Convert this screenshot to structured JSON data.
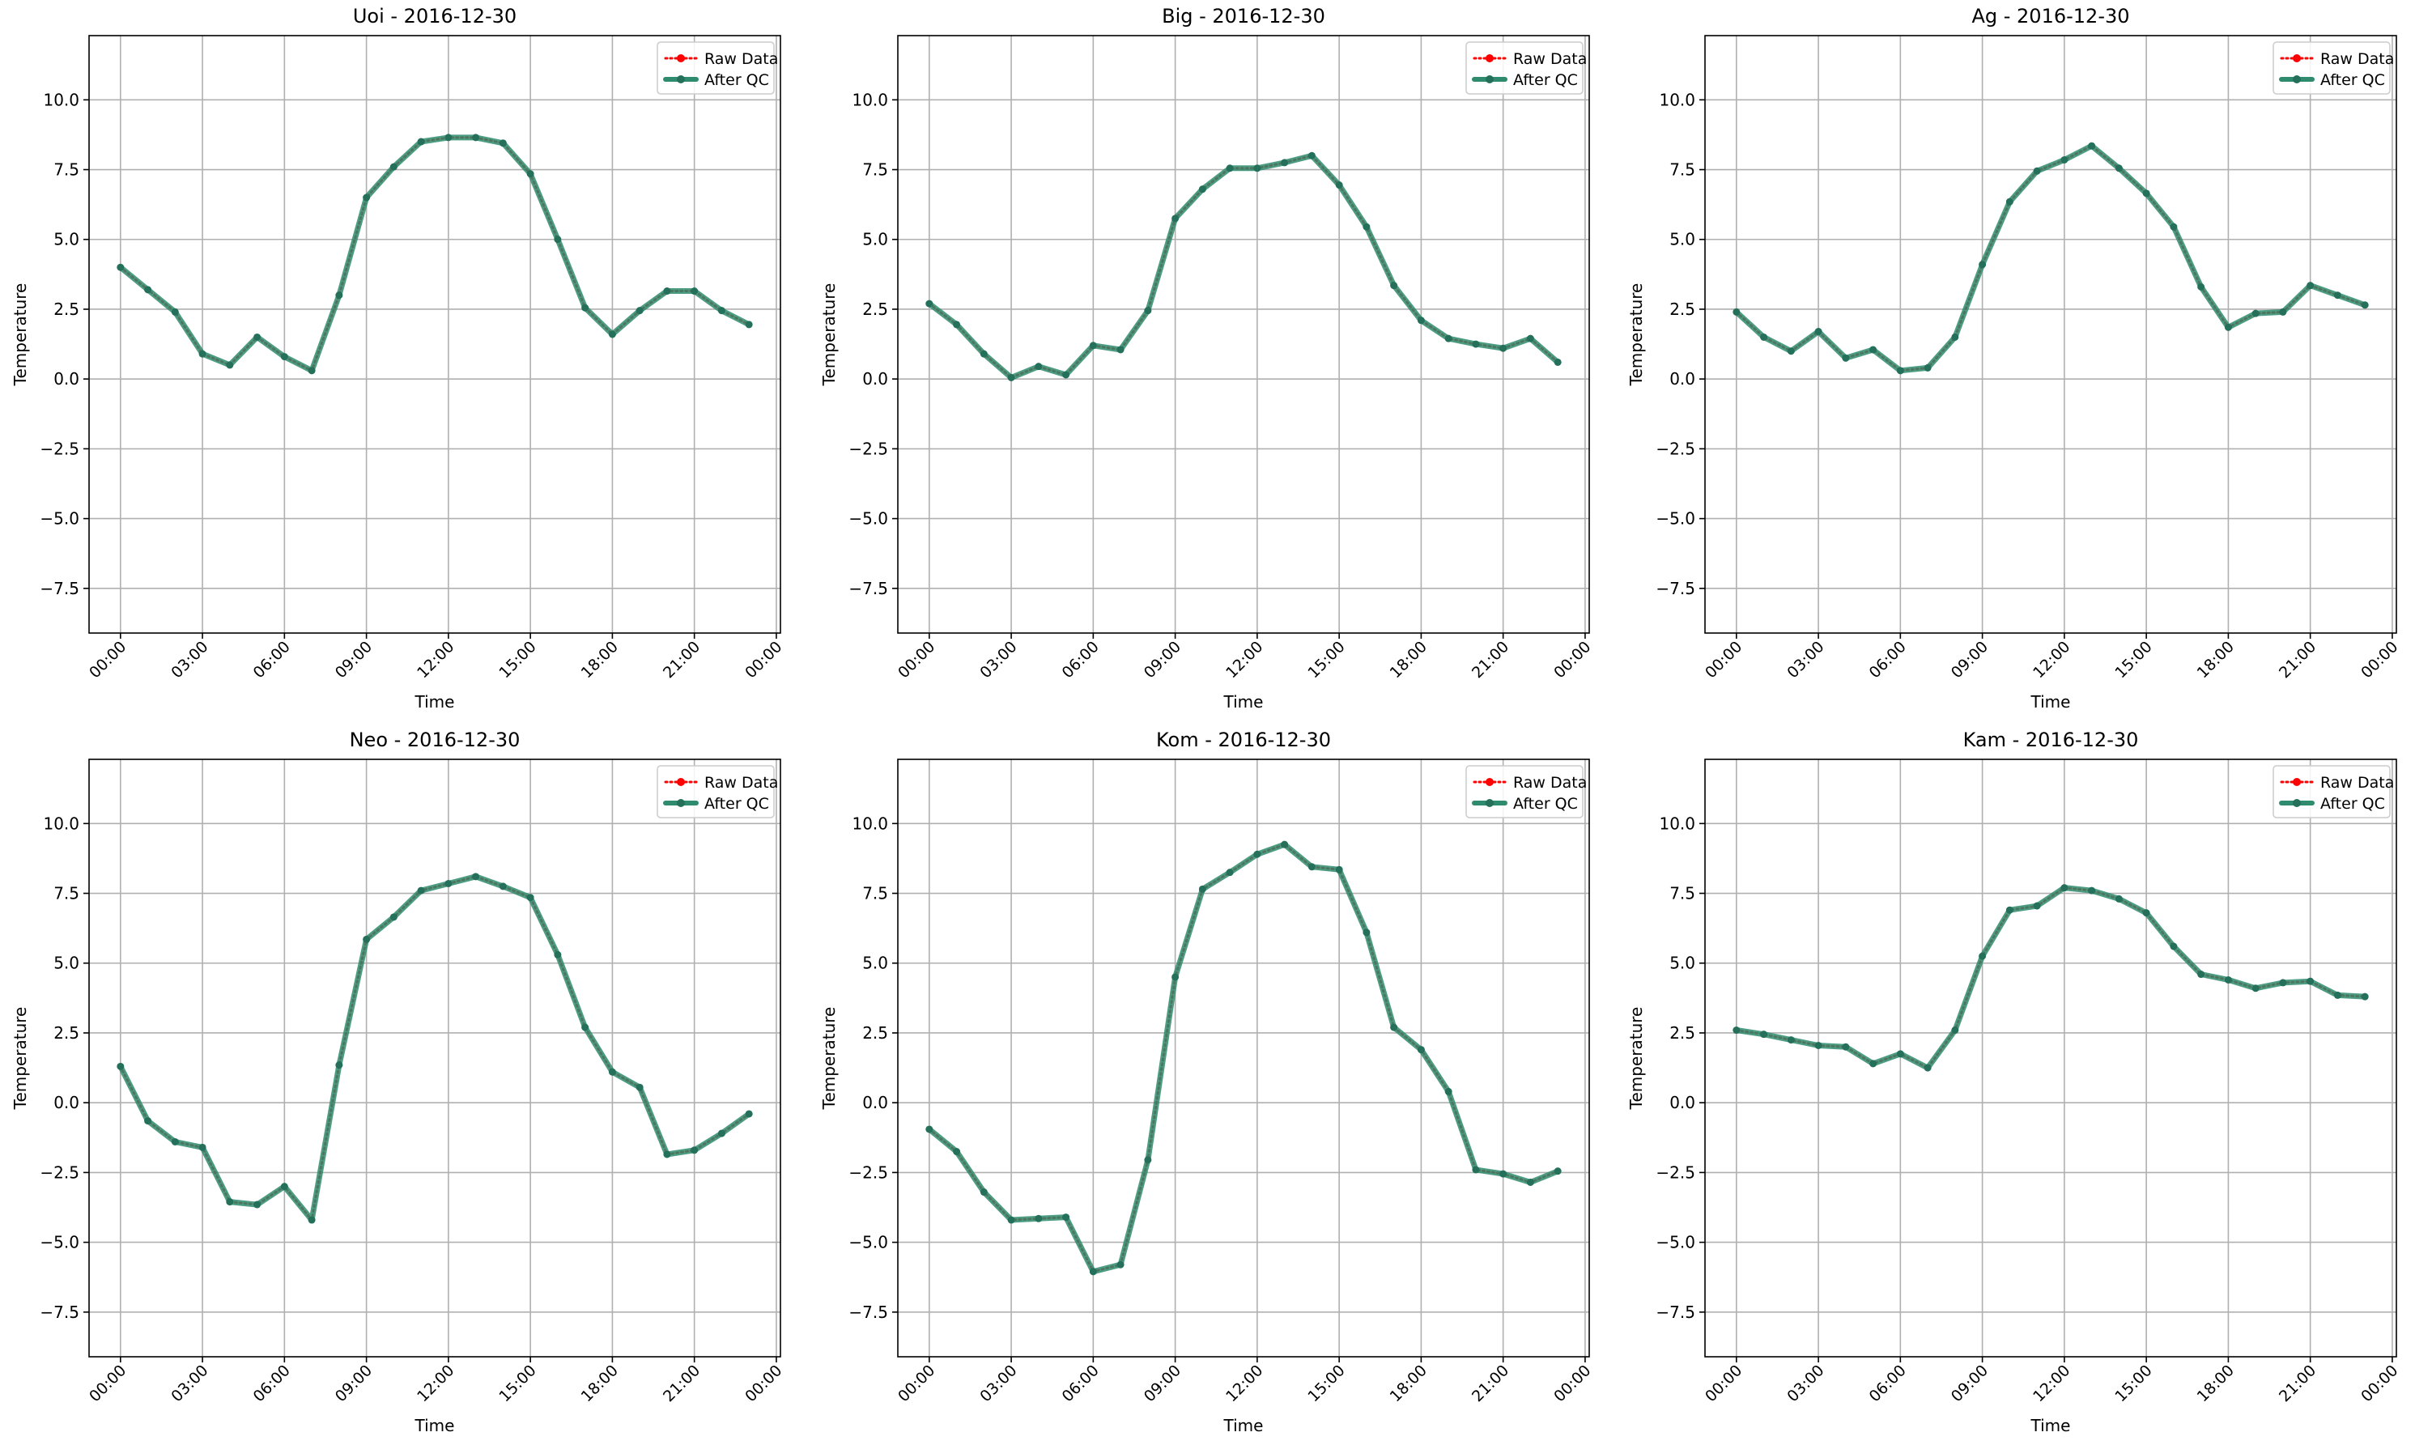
{
  "figure": {
    "legend_labels": [
      "Raw Data",
      "After QC"
    ],
    "colors": {
      "raw": "#ff0000",
      "qc": "#2e8b6e",
      "grid": "#b0b0b0",
      "axis": "#000000"
    }
  },
  "chart_data": [
    {
      "type": "line",
      "title": "Uoi - 2016-12-30",
      "xlabel": "Time",
      "ylabel": "Temperature",
      "xlim": [
        -1.15,
        24.15
      ],
      "ylim": [
        -9.1,
        12.3
      ],
      "x_ticks": [
        0,
        3,
        6,
        9,
        12,
        15,
        18,
        21,
        24
      ],
      "x_tick_labels": [
        "00:00",
        "03:00",
        "06:00",
        "09:00",
        "12:00",
        "15:00",
        "18:00",
        "21:00",
        "00:00"
      ],
      "y_ticks": [
        -7.5,
        -5.0,
        -2.5,
        0.0,
        2.5,
        5.0,
        7.5,
        10.0
      ],
      "y_tick_labels": [
        "−7.5",
        "−5.0",
        "−2.5",
        "0.0",
        "2.5",
        "5.0",
        "7.5",
        "10.0"
      ],
      "grid": true,
      "legend": "top-right",
      "x": [
        0,
        1,
        2,
        3,
        4,
        5,
        6,
        7,
        8,
        9,
        10,
        11,
        12,
        13,
        14,
        15,
        16,
        17,
        18,
        19,
        20,
        21,
        22,
        23
      ],
      "series": [
        {
          "name": "Raw Data",
          "values": [
            4.0,
            3.2,
            2.4,
            0.9,
            0.5,
            1.5,
            0.8,
            0.3,
            3.0,
            6.5,
            7.6,
            8.5,
            8.65,
            8.65,
            8.45,
            7.35,
            5.0,
            2.55,
            1.6,
            2.45,
            3.15,
            3.15,
            2.45,
            1.95
          ]
        },
        {
          "name": "After QC",
          "values": [
            4.0,
            3.2,
            2.4,
            0.9,
            0.5,
            1.5,
            0.8,
            0.3,
            3.0,
            6.5,
            7.6,
            8.5,
            8.65,
            8.65,
            8.45,
            7.35,
            5.0,
            2.55,
            1.6,
            2.45,
            3.15,
            3.15,
            2.45,
            1.95
          ]
        }
      ]
    },
    {
      "type": "line",
      "title": "Big - 2016-12-30",
      "xlabel": "Time",
      "ylabel": "Temperature",
      "xlim": [
        -1.15,
        24.15
      ],
      "ylim": [
        -9.1,
        12.3
      ],
      "x_ticks": [
        0,
        3,
        6,
        9,
        12,
        15,
        18,
        21,
        24
      ],
      "x_tick_labels": [
        "00:00",
        "03:00",
        "06:00",
        "09:00",
        "12:00",
        "15:00",
        "18:00",
        "21:00",
        "00:00"
      ],
      "y_ticks": [
        -7.5,
        -5.0,
        -2.5,
        0.0,
        2.5,
        5.0,
        7.5,
        10.0
      ],
      "y_tick_labels": [
        "−7.5",
        "−5.0",
        "−2.5",
        "0.0",
        "2.5",
        "5.0",
        "7.5",
        "10.0"
      ],
      "grid": true,
      "legend": "top-right",
      "x": [
        0,
        1,
        2,
        3,
        4,
        5,
        6,
        7,
        8,
        9,
        10,
        11,
        12,
        13,
        14,
        15,
        16,
        17,
        18,
        19,
        20,
        21,
        22,
        23
      ],
      "series": [
        {
          "name": "Raw Data",
          "values": [
            2.7,
            1.95,
            0.9,
            0.05,
            0.45,
            0.15,
            1.2,
            1.05,
            2.45,
            5.75,
            6.8,
            7.55,
            7.55,
            7.75,
            8.0,
            6.95,
            5.45,
            3.35,
            2.1,
            1.45,
            1.25,
            1.1,
            1.45,
            0.6
          ]
        },
        {
          "name": "After QC",
          "values": [
            2.7,
            1.95,
            0.9,
            0.05,
            0.45,
            0.15,
            1.2,
            1.05,
            2.45,
            5.75,
            6.8,
            7.55,
            7.55,
            7.75,
            8.0,
            6.95,
            5.45,
            3.35,
            2.1,
            1.45,
            1.25,
            1.1,
            1.45,
            0.6
          ]
        }
      ]
    },
    {
      "type": "line",
      "title": "Ag - 2016-12-30",
      "xlabel": "Time",
      "ylabel": "Temperature",
      "xlim": [
        -1.15,
        24.15
      ],
      "ylim": [
        -9.1,
        12.3
      ],
      "x_ticks": [
        0,
        3,
        6,
        9,
        12,
        15,
        18,
        21,
        24
      ],
      "x_tick_labels": [
        "00:00",
        "03:00",
        "06:00",
        "09:00",
        "12:00",
        "15:00",
        "18:00",
        "21:00",
        "00:00"
      ],
      "y_ticks": [
        -7.5,
        -5.0,
        -2.5,
        0.0,
        2.5,
        5.0,
        7.5,
        10.0
      ],
      "y_tick_labels": [
        "−7.5",
        "−5.0",
        "−2.5",
        "0.0",
        "2.5",
        "5.0",
        "7.5",
        "10.0"
      ],
      "grid": true,
      "legend": "top-right",
      "x": [
        0,
        1,
        2,
        3,
        4,
        5,
        6,
        7,
        8,
        9,
        10,
        11,
        12,
        13,
        14,
        15,
        16,
        17,
        18,
        19,
        20,
        21,
        22,
        23
      ],
      "series": [
        {
          "name": "Raw Data",
          "values": [
            2.4,
            1.5,
            1.0,
            1.7,
            0.75,
            1.05,
            0.3,
            0.4,
            1.5,
            4.1,
            6.35,
            7.45,
            7.85,
            8.35,
            7.55,
            6.65,
            5.45,
            3.3,
            1.85,
            2.35,
            2.4,
            3.35,
            3.0,
            2.65
          ]
        },
        {
          "name": "After QC",
          "values": [
            2.4,
            1.5,
            1.0,
            1.7,
            0.75,
            1.05,
            0.3,
            0.4,
            1.5,
            4.1,
            6.35,
            7.45,
            7.85,
            8.35,
            7.55,
            6.65,
            5.45,
            3.3,
            1.85,
            2.35,
            2.4,
            3.35,
            3.0,
            2.65
          ]
        }
      ]
    },
    {
      "type": "line",
      "title": "Neo - 2016-12-30",
      "xlabel": "Time",
      "ylabel": "Temperature",
      "xlim": [
        -1.15,
        24.15
      ],
      "ylim": [
        -9.1,
        12.3
      ],
      "x_ticks": [
        0,
        3,
        6,
        9,
        12,
        15,
        18,
        21,
        24
      ],
      "x_tick_labels": [
        "00:00",
        "03:00",
        "06:00",
        "09:00",
        "12:00",
        "15:00",
        "18:00",
        "21:00",
        "00:00"
      ],
      "y_ticks": [
        -7.5,
        -5.0,
        -2.5,
        0.0,
        2.5,
        5.0,
        7.5,
        10.0
      ],
      "y_tick_labels": [
        "−7.5",
        "−5.0",
        "−2.5",
        "0.0",
        "2.5",
        "5.0",
        "7.5",
        "10.0"
      ],
      "grid": true,
      "legend": "top-right",
      "x": [
        0,
        1,
        2,
        3,
        4,
        5,
        6,
        7,
        8,
        9,
        10,
        11,
        12,
        13,
        14,
        15,
        16,
        17,
        18,
        19,
        20,
        21,
        22,
        23
      ],
      "series": [
        {
          "name": "Raw Data",
          "values": [
            1.3,
            -0.65,
            -1.4,
            -1.6,
            -3.55,
            -3.65,
            -3.0,
            -4.2,
            1.35,
            5.85,
            6.65,
            7.6,
            7.85,
            8.1,
            7.75,
            7.35,
            5.3,
            2.7,
            1.1,
            0.55,
            -1.85,
            -1.7,
            -1.1,
            -0.4
          ]
        },
        {
          "name": "After QC",
          "values": [
            1.3,
            -0.65,
            -1.4,
            -1.6,
            -3.55,
            -3.65,
            -3.0,
            -4.2,
            1.35,
            5.85,
            6.65,
            7.6,
            7.85,
            8.1,
            7.75,
            7.35,
            5.3,
            2.7,
            1.1,
            0.55,
            -1.85,
            -1.7,
            -1.1,
            -0.4
          ]
        }
      ]
    },
    {
      "type": "line",
      "title": "Kom - 2016-12-30",
      "xlabel": "Time",
      "ylabel": "Temperature",
      "xlim": [
        -1.15,
        24.15
      ],
      "ylim": [
        -9.1,
        12.3
      ],
      "x_ticks": [
        0,
        3,
        6,
        9,
        12,
        15,
        18,
        21,
        24
      ],
      "x_tick_labels": [
        "00:00",
        "03:00",
        "06:00",
        "09:00",
        "12:00",
        "15:00",
        "18:00",
        "21:00",
        "00:00"
      ],
      "y_ticks": [
        -7.5,
        -5.0,
        -2.5,
        0.0,
        2.5,
        5.0,
        7.5,
        10.0
      ],
      "y_tick_labels": [
        "−7.5",
        "−5.0",
        "−2.5",
        "0.0",
        "2.5",
        "5.0",
        "7.5",
        "10.0"
      ],
      "grid": true,
      "legend": "top-right",
      "x": [
        0,
        1,
        2,
        3,
        4,
        5,
        6,
        7,
        8,
        9,
        10,
        11,
        12,
        13,
        14,
        15,
        16,
        17,
        18,
        19,
        20,
        21,
        22,
        23
      ],
      "series": [
        {
          "name": "Raw Data",
          "values": [
            -0.95,
            -1.75,
            -3.2,
            -4.2,
            -4.15,
            -4.1,
            -6.05,
            -5.8,
            -2.05,
            4.5,
            7.65,
            8.25,
            8.9,
            9.25,
            8.45,
            8.35,
            6.1,
            2.7,
            1.9,
            0.4,
            -2.4,
            -2.55,
            -2.85,
            -2.45
          ]
        },
        {
          "name": "After QC",
          "values": [
            -0.95,
            -1.75,
            -3.2,
            -4.2,
            -4.15,
            -4.1,
            -6.05,
            -5.8,
            -2.05,
            4.5,
            7.65,
            8.25,
            8.9,
            9.25,
            8.45,
            8.35,
            6.1,
            2.7,
            1.9,
            0.4,
            -2.4,
            -2.55,
            -2.85,
            -2.45
          ]
        }
      ]
    },
    {
      "type": "line",
      "title": "Kam - 2016-12-30",
      "xlabel": "Time",
      "ylabel": "Temperature",
      "xlim": [
        -1.15,
        24.15
      ],
      "ylim": [
        -9.1,
        12.3
      ],
      "x_ticks": [
        0,
        3,
        6,
        9,
        12,
        15,
        18,
        21,
        24
      ],
      "x_tick_labels": [
        "00:00",
        "03:00",
        "06:00",
        "09:00",
        "12:00",
        "15:00",
        "18:00",
        "21:00",
        "00:00"
      ],
      "y_ticks": [
        -7.5,
        -5.0,
        -2.5,
        0.0,
        2.5,
        5.0,
        7.5,
        10.0
      ],
      "y_tick_labels": [
        "−7.5",
        "−5.0",
        "−2.5",
        "0.0",
        "2.5",
        "5.0",
        "7.5",
        "10.0"
      ],
      "grid": true,
      "legend": "top-right",
      "x": [
        0,
        1,
        2,
        3,
        4,
        5,
        6,
        7,
        8,
        9,
        10,
        11,
        12,
        13,
        14,
        15,
        16,
        17,
        18,
        19,
        20,
        21,
        22,
        23
      ],
      "series": [
        {
          "name": "Raw Data",
          "values": [
            2.6,
            2.45,
            2.25,
            2.05,
            2.0,
            1.4,
            1.75,
            1.25,
            2.6,
            5.25,
            6.9,
            7.05,
            7.7,
            7.6,
            7.3,
            6.8,
            5.6,
            4.6,
            4.4,
            4.1,
            4.3,
            4.35,
            3.85,
            3.8
          ]
        },
        {
          "name": "After QC",
          "values": [
            2.6,
            2.45,
            2.25,
            2.05,
            2.0,
            1.4,
            1.75,
            1.25,
            2.6,
            5.25,
            6.9,
            7.05,
            7.7,
            7.6,
            7.3,
            6.8,
            5.6,
            4.6,
            4.4,
            4.1,
            4.3,
            4.35,
            3.85,
            3.8
          ]
        }
      ]
    }
  ]
}
